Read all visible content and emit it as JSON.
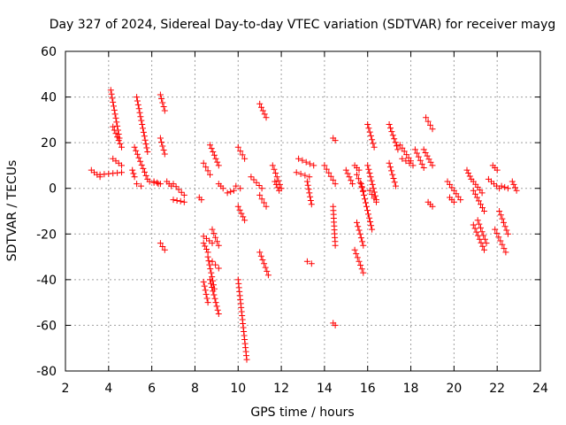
{
  "chart_data": {
    "type": "scatter",
    "title": "Day 327 of 2024, Sidereal Day-to-day VTEC variation (SDTVAR) for receiver mayg",
    "xlabel": "GPS time / hours",
    "ylabel": "SDTVAR / TECUs",
    "xlim": [
      2,
      24
    ],
    "ylim": [
      -80,
      60
    ],
    "xticks": [
      2,
      4,
      6,
      8,
      10,
      12,
      14,
      16,
      18,
      20,
      22,
      24
    ],
    "yticks": [
      -80,
      -60,
      -40,
      -20,
      0,
      20,
      40,
      60
    ],
    "grid": true,
    "marker": "plus",
    "colors": {
      "points": "#ff0000",
      "grid": "#a0a0a0",
      "axes": "#000000"
    },
    "series": [
      {
        "name": "SDTVAR",
        "segments": [
          {
            "x": [
              3.2,
              3.6
            ],
            "y": [
              8,
              5
            ]
          },
          {
            "x": [
              3.6,
              4.6
            ],
            "y": [
              6,
              7
            ]
          },
          {
            "x": [
              4.1,
              4.5
            ],
            "y": [
              43,
              22
            ]
          },
          {
            "x": [
              4.2,
              4.6
            ],
            "y": [
              27,
              18
            ]
          },
          {
            "x": [
              4.2,
              4.6
            ],
            "y": [
              13,
              10
            ]
          },
          {
            "x": [
              5.1,
              5.2
            ],
            "y": [
              8,
              5
            ]
          },
          {
            "x": [
              5.3,
              5.8
            ],
            "y": [
              40,
              16
            ]
          },
          {
            "x": [
              5.2,
              5.8
            ],
            "y": [
              18,
              4
            ]
          },
          {
            "x": [
              5.3,
              5.5
            ],
            "y": [
              2,
              1
            ]
          },
          {
            "x": [
              5.9,
              6.3
            ],
            "y": [
              3,
              2
            ]
          },
          {
            "x": [
              6.1,
              6.4
            ],
            "y": [
              3,
              2
            ]
          },
          {
            "x": [
              6.4,
              6.6
            ],
            "y": [
              41,
              34
            ]
          },
          {
            "x": [
              6.4,
              6.6
            ],
            "y": [
              22,
              15
            ]
          },
          {
            "x": [
              6.4,
              6.6
            ],
            "y": [
              -24,
              -27
            ]
          },
          {
            "x": [
              6.7,
              6.9
            ],
            "y": [
              3,
              1
            ]
          },
          {
            "x": [
              7.0,
              7.5
            ],
            "y": [
              2,
              -3
            ]
          },
          {
            "x": [
              7.0,
              7.5
            ],
            "y": [
              -5,
              -6
            ]
          },
          {
            "x": [
              8.2,
              8.3
            ],
            "y": [
              -4,
              -5
            ]
          },
          {
            "x": [
              8.4,
              8.7
            ],
            "y": [
              11,
              6
            ]
          },
          {
            "x": [
              8.4,
              8.6
            ],
            "y": [
              -24,
              -28
            ]
          },
          {
            "x": [
              8.4,
              8.8
            ],
            "y": [
              -21,
              -24
            ]
          },
          {
            "x": [
              8.4,
              8.6
            ],
            "y": [
              -41,
              -50
            ]
          },
          {
            "x": [
              8.6,
              8.9
            ],
            "y": [
              -30,
              -44
            ]
          },
          {
            "x": [
              8.7,
              9.1
            ],
            "y": [
              19,
              10
            ]
          },
          {
            "x": [
              8.8,
              9.1
            ],
            "y": [
              -18,
              -25
            ]
          },
          {
            "x": [
              8.8,
              9.1
            ],
            "y": [
              -32,
              -35
            ]
          },
          {
            "x": [
              8.7,
              9.1
            ],
            "y": [
              -40,
              -55
            ]
          },
          {
            "x": [
              9.1,
              9.3
            ],
            "y": [
              2,
              0
            ]
          },
          {
            "x": [
              9.5,
              9.8
            ],
            "y": [
              -2,
              -1
            ]
          },
          {
            "x": [
              9.9,
              10.1
            ],
            "y": [
              1,
              0
            ]
          },
          {
            "x": [
              10.0,
              10.3
            ],
            "y": [
              18,
              13
            ]
          },
          {
            "x": [
              10.0,
              10.3
            ],
            "y": [
              -8,
              -14
            ]
          },
          {
            "x": [
              10.0,
              10.4
            ],
            "y": [
              -40,
              -75
            ]
          },
          {
            "x": [
              10.6,
              11.1
            ],
            "y": [
              5,
              0
            ]
          },
          {
            "x": [
              11.0,
              11.3
            ],
            "y": [
              37,
              31
            ]
          },
          {
            "x": [
              11.0,
              11.3
            ],
            "y": [
              -3,
              -8
            ]
          },
          {
            "x": [
              11.0,
              11.4
            ],
            "y": [
              -28,
              -38
            ]
          },
          {
            "x": [
              11.6,
              12.0
            ],
            "y": [
              10,
              0
            ]
          },
          {
            "x": [
              11.7,
              11.9
            ],
            "y": [
              3,
              -1
            ]
          },
          {
            "x": [
              12.8,
              13.5
            ],
            "y": [
              13,
              10
            ]
          },
          {
            "x": [
              12.7,
              13.3
            ],
            "y": [
              7,
              5
            ]
          },
          {
            "x": [
              13.2,
              13.4
            ],
            "y": [
              3,
              -7
            ]
          },
          {
            "x": [
              13.2,
              13.4
            ],
            "y": [
              -32,
              -33
            ]
          },
          {
            "x": [
              14.0,
              14.5
            ],
            "y": [
              10,
              2
            ]
          },
          {
            "x": [
              14.4,
              14.5
            ],
            "y": [
              22,
              21
            ]
          },
          {
            "x": [
              14.4,
              14.5
            ],
            "y": [
              -8,
              -25
            ]
          },
          {
            "x": [
              14.4,
              14.5
            ],
            "y": [
              -59,
              -60
            ]
          },
          {
            "x": [
              15.0,
              15.3
            ],
            "y": [
              8,
              2
            ]
          },
          {
            "x": [
              15.4,
              15.6
            ],
            "y": [
              10,
              8
            ]
          },
          {
            "x": [
              15.5,
              15.8
            ],
            "y": [
              6,
              -1
            ]
          },
          {
            "x": [
              15.5,
              15.8
            ],
            "y": [
              -15,
              -25
            ]
          },
          {
            "x": [
              15.4,
              15.8
            ],
            "y": [
              -27,
              -37
            ]
          },
          {
            "x": [
              15.7,
              16.2
            ],
            "y": [
              2,
              -18
            ]
          },
          {
            "x": [
              16.0,
              16.3
            ],
            "y": [
              28,
              18
            ]
          },
          {
            "x": [
              16.0,
              16.4
            ],
            "y": [
              10,
              -5
            ]
          },
          {
            "x": [
              16.1,
              16.4
            ],
            "y": [
              -1,
              -6
            ]
          },
          {
            "x": [
              17.0,
              17.4
            ],
            "y": [
              28,
              17
            ]
          },
          {
            "x": [
              17.0,
              17.3
            ],
            "y": [
              11,
              1
            ]
          },
          {
            "x": [
              17.5,
              18.0
            ],
            "y": [
              19,
              12
            ]
          },
          {
            "x": [
              17.6,
              18.1
            ],
            "y": [
              13,
              10
            ]
          },
          {
            "x": [
              18.2,
              18.6
            ],
            "y": [
              17,
              9
            ]
          },
          {
            "x": [
              18.7,
              19.0
            ],
            "y": [
              31,
              26
            ]
          },
          {
            "x": [
              18.6,
              19.0
            ],
            "y": [
              17,
              10
            ]
          },
          {
            "x": [
              18.8,
              19.0
            ],
            "y": [
              -6,
              -8
            ]
          },
          {
            "x": [
              19.7,
              20.3
            ],
            "y": [
              3,
              -5
            ]
          },
          {
            "x": [
              19.8,
              20.0
            ],
            "y": [
              -4,
              -6
            ]
          },
          {
            "x": [
              20.6,
              20.8
            ],
            "y": [
              8,
              4
            ]
          },
          {
            "x": [
              20.9,
              21.3
            ],
            "y": [
              3,
              -2
            ]
          },
          {
            "x": [
              20.9,
              21.4
            ],
            "y": [
              -1,
              -10
            ]
          },
          {
            "x": [
              20.9,
              21.4
            ],
            "y": [
              -16,
              -27
            ]
          },
          {
            "x": [
              21.1,
              21.5
            ],
            "y": [
              -14,
              -24
            ]
          },
          {
            "x": [
              21.6,
              22.1
            ],
            "y": [
              4,
              0
            ]
          },
          {
            "x": [
              21.8,
              22.0
            ],
            "y": [
              10,
              8
            ]
          },
          {
            "x": [
              21.9,
              22.4
            ],
            "y": [
              -18,
              -28
            ]
          },
          {
            "x": [
              22.1,
              22.5
            ],
            "y": [
              -10,
              -20
            ]
          },
          {
            "x": [
              22.2,
              22.5
            ],
            "y": [
              1,
              0
            ]
          },
          {
            "x": [
              22.7,
              22.9
            ],
            "y": [
              3,
              -1
            ]
          }
        ]
      }
    ]
  }
}
